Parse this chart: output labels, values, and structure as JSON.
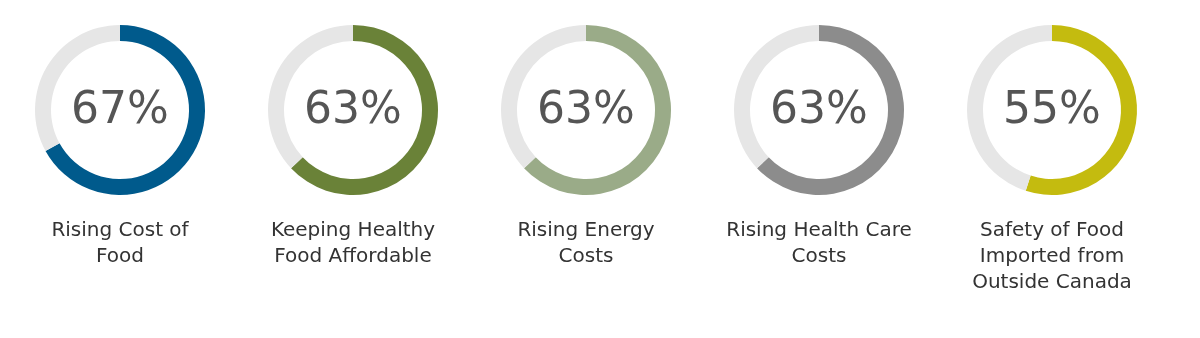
{
  "chart_data": [
    {
      "type": "donut",
      "title": "Rising Cost of\nFood",
      "categories": [
        null,
        null
      ],
      "values": [
        67,
        33
      ],
      "colors": [
        "#005a8c",
        "#e6e6e6"
      ],
      "value_labels": [
        "67%",
        null
      ]
    },
    {
      "type": "donut",
      "title": "Keeping Healthy\nFood Affordable",
      "categories": [
        null,
        null
      ],
      "values": [
        63,
        37
      ],
      "colors": [
        "#6a8238",
        "#e6e6e6"
      ],
      "value_labels": [
        "63%",
        null
      ]
    },
    {
      "type": "donut",
      "title": "Rising Energy\nCosts",
      "categories": [
        null,
        null
      ],
      "values": [
        63,
        37
      ],
      "colors": [
        "#9aab88",
        "#e6e6e6"
      ],
      "value_labels": [
        "63%",
        null
      ]
    },
    {
      "type": "donut",
      "title": "Rising Health Care\nCosts",
      "categories": [
        null,
        null
      ],
      "values": [
        63,
        37
      ],
      "colors": [
        "#8c8c8c",
        "#e6e6e6"
      ],
      "value_labels": [
        "63%",
        null
      ]
    },
    {
      "type": "donut",
      "title": "Safety of Food\nImported from\nOutside Canada",
      "categories": [
        null,
        null
      ],
      "values": [
        55,
        45
      ],
      "colors": [
        "#c4bb0f",
        "#e6e6e6"
      ],
      "value_labels": [
        "55%",
        null
      ]
    }
  ]
}
